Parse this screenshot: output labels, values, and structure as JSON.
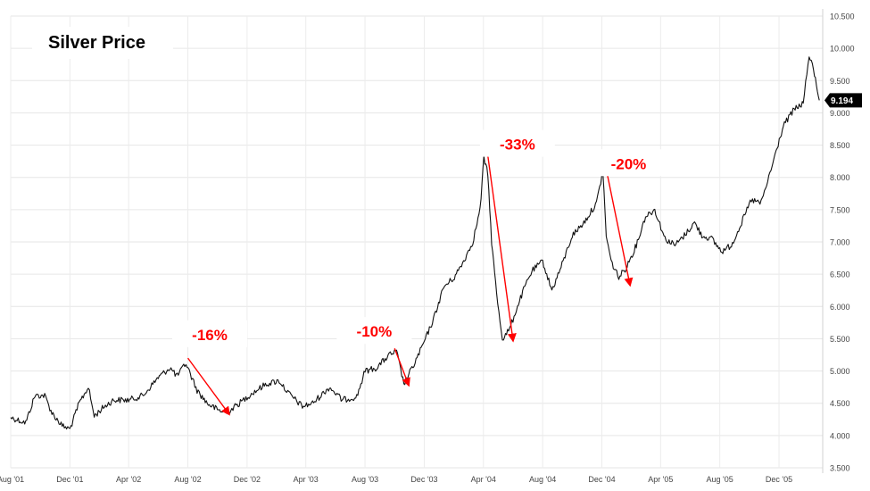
{
  "title": "Silver Price",
  "price_badge": "9.194",
  "chart_data": {
    "type": "line",
    "title": "Silver Price",
    "xlabel": "",
    "ylabel": "",
    "ylim": [
      3.5,
      10.5
    ],
    "y_ticks": [
      3.5,
      4.0,
      4.5,
      5.0,
      5.5,
      6.0,
      6.5,
      7.0,
      7.5,
      8.0,
      8.5,
      9.0,
      9.5,
      10.0,
      10.5
    ],
    "y_tick_labels": [
      "3.500",
      "4.000",
      "4.500",
      "5.000",
      "5.500",
      "6.000",
      "6.500",
      "7.000",
      "7.500",
      "8.000",
      "8.500",
      "9.000",
      "9.500",
      "10.000",
      "10.500"
    ],
    "x_ticks": [
      "2001-08-01",
      "2001-12-01",
      "2002-04-01",
      "2002-08-01",
      "2002-12-01",
      "2003-04-01",
      "2003-08-01",
      "2003-12-01",
      "2004-04-01",
      "2004-08-01",
      "2004-12-01",
      "2005-04-01",
      "2005-08-01",
      "2005-12-01"
    ],
    "x_tick_labels": [
      "Aug '01",
      "Dec '01",
      "Apr '02",
      "Aug '02",
      "Dec '02",
      "Apr '03",
      "Aug '03",
      "Dec '03",
      "Apr '04",
      "Aug '04",
      "Dec '04",
      "Apr '05",
      "Aug '05",
      "Dec '05"
    ],
    "x_range": [
      "2001-08-01",
      "2006-03-01"
    ],
    "grid": true,
    "series": [
      {
        "color": "#111111",
        "points": [
          [
            "2001-08-01",
            4.28
          ],
          [
            "2001-09-01",
            4.2
          ],
          [
            "2001-09-20",
            4.62
          ],
          [
            "2001-10-10",
            4.62
          ],
          [
            "2001-10-25",
            4.35
          ],
          [
            "2001-11-15",
            4.15
          ],
          [
            "2001-12-01",
            4.1
          ],
          [
            "2001-12-20",
            4.5
          ],
          [
            "2002-01-08",
            4.75
          ],
          [
            "2002-01-20",
            4.3
          ],
          [
            "2002-02-10",
            4.45
          ],
          [
            "2002-03-01",
            4.55
          ],
          [
            "2002-04-01",
            4.55
          ],
          [
            "2002-05-01",
            4.62
          ],
          [
            "2002-06-01",
            4.9
          ],
          [
            "2002-06-25",
            5.05
          ],
          [
            "2002-07-10",
            4.92
          ],
          [
            "2002-07-28",
            5.12
          ],
          [
            "2002-08-20",
            4.7
          ],
          [
            "2002-09-10",
            4.5
          ],
          [
            "2002-10-01",
            4.4
          ],
          [
            "2002-10-20",
            4.35
          ],
          [
            "2002-11-15",
            4.5
          ],
          [
            "2002-12-10",
            4.65
          ],
          [
            "2003-01-10",
            4.8
          ],
          [
            "2003-02-05",
            4.85
          ],
          [
            "2003-02-25",
            4.65
          ],
          [
            "2003-03-25",
            4.45
          ],
          [
            "2003-04-15",
            4.5
          ],
          [
            "2003-05-20",
            4.75
          ],
          [
            "2003-06-15",
            4.55
          ],
          [
            "2003-07-15",
            4.6
          ],
          [
            "2003-08-01",
            5.0
          ],
          [
            "2003-08-25",
            5.05
          ],
          [
            "2003-09-20",
            5.25
          ],
          [
            "2003-10-05",
            5.3
          ],
          [
            "2003-10-20",
            4.8
          ],
          [
            "2003-11-10",
            5.1
          ],
          [
            "2003-12-01",
            5.45
          ],
          [
            "2003-12-20",
            5.8
          ],
          [
            "2004-01-10",
            6.3
          ],
          [
            "2004-02-01",
            6.45
          ],
          [
            "2004-02-20",
            6.7
          ],
          [
            "2004-03-10",
            7.0
          ],
          [
            "2004-03-25",
            7.5
          ],
          [
            "2004-04-02",
            8.3
          ],
          [
            "2004-04-10",
            8.05
          ],
          [
            "2004-04-18",
            7.0
          ],
          [
            "2004-04-28",
            6.2
          ],
          [
            "2004-05-10",
            5.5
          ],
          [
            "2004-05-25",
            5.65
          ],
          [
            "2004-06-10",
            6.0
          ],
          [
            "2004-06-25",
            6.3
          ],
          [
            "2004-07-10",
            6.55
          ],
          [
            "2004-08-01",
            6.7
          ],
          [
            "2004-08-20",
            6.25
          ],
          [
            "2004-09-10",
            6.65
          ],
          [
            "2004-10-01",
            7.1
          ],
          [
            "2004-10-25",
            7.3
          ],
          [
            "2004-11-20",
            7.6
          ],
          [
            "2004-12-03",
            8.1
          ],
          [
            "2004-12-10",
            7.1
          ],
          [
            "2004-12-20",
            6.7
          ],
          [
            "2005-01-05",
            6.45
          ],
          [
            "2005-01-20",
            6.6
          ],
          [
            "2005-02-10",
            6.95
          ],
          [
            "2005-03-01",
            7.4
          ],
          [
            "2005-03-20",
            7.5
          ],
          [
            "2005-04-10",
            7.05
          ],
          [
            "2005-05-01",
            6.95
          ],
          [
            "2005-05-20",
            7.1
          ],
          [
            "2005-06-10",
            7.3
          ],
          [
            "2005-06-25",
            7.1
          ],
          [
            "2005-07-15",
            7.05
          ],
          [
            "2005-08-05",
            6.85
          ],
          [
            "2005-08-25",
            6.95
          ],
          [
            "2005-09-15",
            7.3
          ],
          [
            "2005-10-05",
            7.65
          ],
          [
            "2005-10-25",
            7.6
          ],
          [
            "2005-11-10",
            8.0
          ],
          [
            "2005-11-25",
            8.4
          ],
          [
            "2005-12-10",
            8.8
          ],
          [
            "2006-01-01",
            9.05
          ],
          [
            "2006-01-20",
            9.15
          ],
          [
            "2006-02-01",
            9.9
          ],
          [
            "2006-02-12",
            9.6
          ],
          [
            "2006-02-22",
            9.194
          ]
        ]
      }
    ],
    "annotations": [
      {
        "text": "-16%",
        "color": "#ff0000",
        "label_x": "2002-09-15",
        "label_y": 5.55,
        "from": [
          "2002-08-01",
          5.2
        ],
        "to": [
          "2002-10-25",
          4.33
        ]
      },
      {
        "text": "-10%",
        "color": "#ff0000",
        "label_x": "2003-08-20",
        "label_y": 5.6,
        "from": [
          "2003-10-01",
          5.35
        ],
        "to": [
          "2003-10-30",
          4.78
        ]
      },
      {
        "text": "-33%",
        "color": "#ff0000",
        "label_x": "2004-06-10",
        "label_y": 8.5,
        "from": [
          "2004-04-08",
          8.45
        ],
        "to": [
          "2004-06-01",
          5.47
        ]
      },
      {
        "text": "-20%",
        "color": "#ff0000",
        "label_x": "2005-01-25",
        "label_y": 8.2,
        "from": [
          "2004-12-08",
          8.2
        ],
        "to": [
          "2005-01-28",
          6.33
        ]
      }
    ]
  }
}
